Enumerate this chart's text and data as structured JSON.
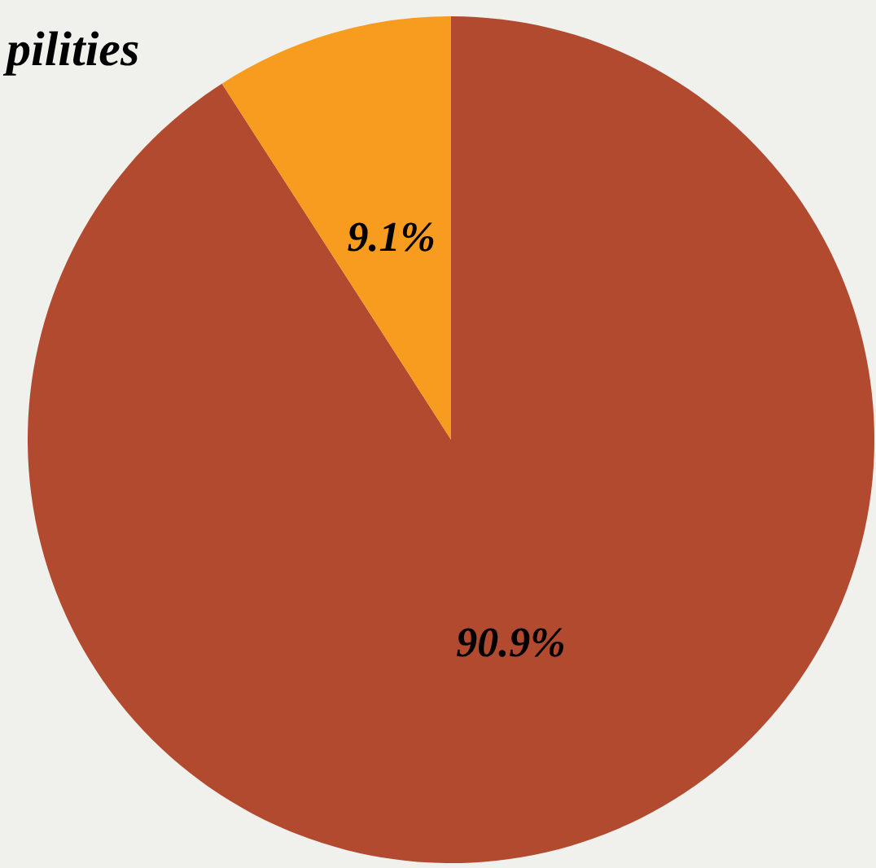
{
  "chart_data": {
    "type": "pie",
    "annotations": [
      "pilities"
    ],
    "categories": [
      null,
      null
    ],
    "values": [
      90.9,
      9.1
    ],
    "colors": [
      "#b24a2f",
      "#f79c1e"
    ],
    "value_labels": [
      "90.9%",
      "9.1%"
    ]
  }
}
